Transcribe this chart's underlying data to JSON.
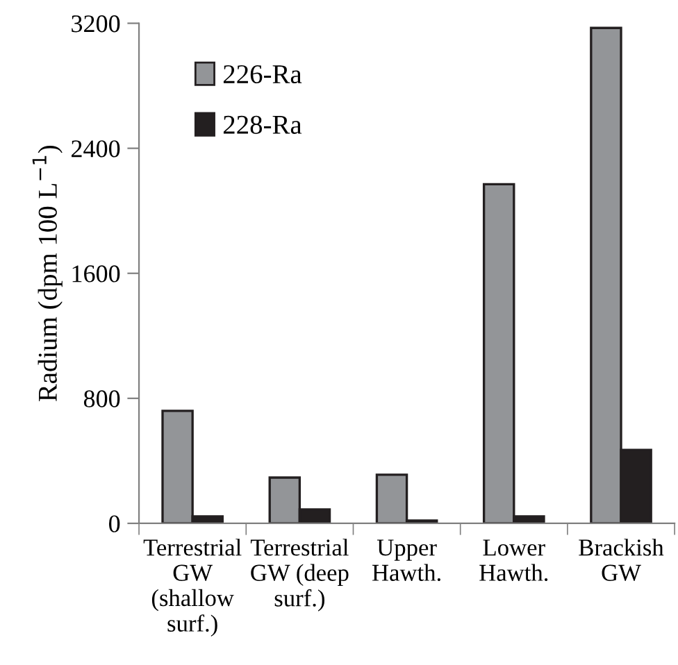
{
  "chart_data": {
    "type": "bar",
    "ylabel": "Radium (dpm 100 L$^{−1}$)",
    "categories": [
      "Terrestrial\nGW\n(shallow\nsurf.)",
      "Terrestrial\nGW (deep\nsurf.)",
      "Upper\nHawth.",
      "Lower\nHawth.",
      "Brackish\nGW"
    ],
    "series": [
      {
        "name": "226-Ra",
        "color": "#939598",
        "values": [
          720,
          293,
          311,
          2170,
          3170
        ]
      },
      {
        "name": "228-Ra",
        "color": "#231f20",
        "values": [
          45,
          89,
          18,
          45,
          470
        ]
      }
    ],
    "ylim": [
      0,
      3200
    ],
    "yticks": [
      0,
      800,
      1600,
      2400,
      3200
    ],
    "grid": false,
    "legend": "top left"
  }
}
